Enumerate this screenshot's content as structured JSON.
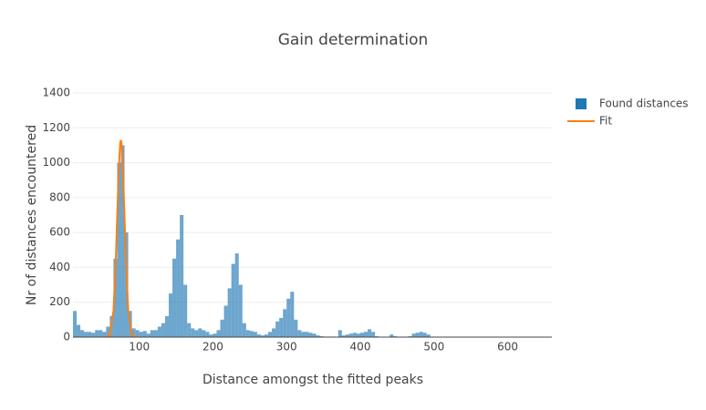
{
  "chart_data": {
    "type": "histogram",
    "title": "Gain determination",
    "x_label": "Distance amongst the fitted peaks",
    "y_label": "Nr of distances encountered",
    "xlim": [
      10,
      660
    ],
    "ylim": [
      0,
      1400
    ],
    "xticks": [
      100,
      200,
      300,
      400,
      500,
      600
    ],
    "yticks": [
      0,
      200,
      400,
      600,
      800,
      1000,
      1200,
      1400
    ],
    "grid": true,
    "legend": "top-right",
    "series": [
      {
        "name": "Found distances",
        "color": "#1f77b4",
        "bins": [
          10,
          15,
          20,
          25,
          30,
          35,
          40,
          45,
          50,
          55,
          60,
          65,
          70,
          75,
          80,
          85,
          90,
          95,
          100,
          105,
          110,
          115,
          120,
          125,
          130,
          135,
          140,
          145,
          150,
          155,
          160,
          165,
          170,
          175,
          180,
          185,
          190,
          195,
          200,
          205,
          210,
          215,
          220,
          225,
          230,
          235,
          240,
          245,
          250,
          255,
          260,
          265,
          270,
          275,
          280,
          285,
          290,
          295,
          300,
          305,
          310,
          315,
          320,
          325,
          330,
          335,
          340,
          345,
          350,
          355,
          360,
          365,
          370,
          375,
          380,
          385,
          390,
          395,
          400,
          405,
          410,
          415,
          420,
          425,
          430,
          435,
          440,
          445,
          450,
          455,
          460,
          465,
          470,
          475,
          480,
          485,
          490,
          495,
          500,
          505,
          510,
          515,
          520,
          525,
          530,
          535,
          540,
          545,
          550,
          555,
          560,
          565,
          570,
          575,
          580,
          585,
          590,
          595,
          600,
          605,
          610,
          615,
          620,
          625,
          630,
          635,
          640,
          645,
          650,
          655,
          660
        ],
        "values": [
          150,
          70,
          40,
          30,
          30,
          25,
          40,
          40,
          30,
          60,
          120,
          450,
          1000,
          1100,
          600,
          150,
          50,
          40,
          30,
          35,
          20,
          40,
          40,
          60,
          80,
          120,
          250,
          450,
          560,
          700,
          300,
          80,
          50,
          40,
          50,
          40,
          30,
          15,
          20,
          40,
          100,
          180,
          280,
          420,
          480,
          300,
          80,
          40,
          35,
          30,
          15,
          10,
          15,
          30,
          50,
          90,
          110,
          160,
          220,
          260,
          100,
          40,
          30,
          30,
          25,
          20,
          10,
          5,
          3,
          3,
          3,
          2,
          40,
          10,
          15,
          20,
          25,
          20,
          25,
          30,
          45,
          30,
          5,
          2,
          2,
          2,
          15,
          5,
          2,
          1,
          2,
          5,
          20,
          25,
          30,
          25,
          15,
          3,
          1,
          1,
          0,
          0,
          0,
          0,
          0,
          0,
          0,
          0,
          0,
          0,
          0,
          0,
          0,
          0,
          0,
          0,
          0,
          0,
          0,
          0,
          0,
          0,
          0,
          0,
          0,
          0,
          0,
          0,
          0,
          0
        ]
      },
      {
        "name": "Fit",
        "type": "line",
        "color": "#ff7f0e",
        "x": [
          55,
          60,
          65,
          68,
          70,
          72,
          74,
          75,
          76,
          78,
          80,
          82,
          85,
          90,
          95
        ],
        "values": [
          0.4,
          12,
          153,
          424,
          686,
          944,
          1108,
          1130,
          1108,
          944,
          686,
          424,
          153,
          12,
          0.4
        ]
      }
    ]
  }
}
